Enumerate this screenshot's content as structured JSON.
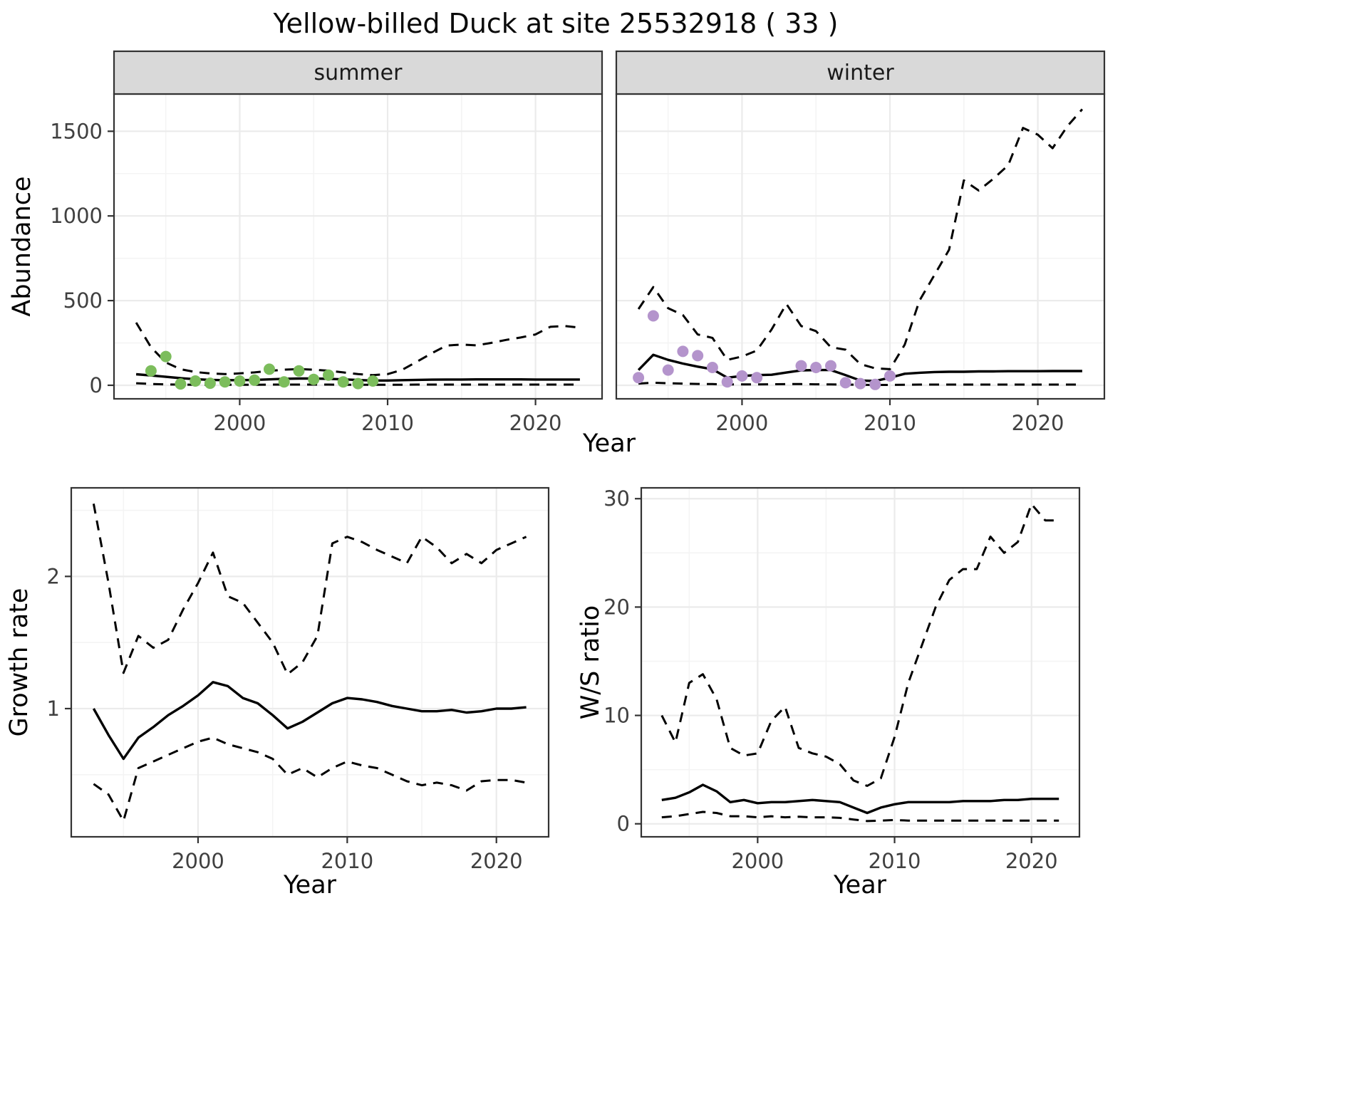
{
  "title": "Yellow-billed Duck at site 25532918 ( 33 )",
  "palette": {
    "summer_point": "#7CBD5C",
    "winter_point": "#B494CC",
    "line": "#000000",
    "strip_bg": "#D9D9D9",
    "strip_text": "#1A1A1A",
    "grid_major": "#EBEBEB",
    "grid_minor": "#F4F4F4",
    "panel_border": "#333333",
    "tick_text": "#404040",
    "axis_text": "#000000"
  },
  "chart_data": [
    {
      "id": "abundance",
      "type": "line",
      "xlabel": "Year",
      "ylabel": "Abundance",
      "xticks": [
        2000,
        2010,
        2020
      ],
      "yticks": [
        0,
        500,
        1000,
        1500
      ],
      "xlim": [
        1991.5,
        2024.5
      ],
      "ylim": [
        -80,
        1720
      ],
      "grid": true,
      "legend": "none",
      "x": [
        1993,
        1994,
        1995,
        1996,
        1997,
        1998,
        1999,
        2000,
        2001,
        2002,
        2003,
        2004,
        2005,
        2006,
        2007,
        2008,
        2009,
        2010,
        2011,
        2012,
        2013,
        2014,
        2015,
        2016,
        2017,
        2018,
        2019,
        2020,
        2021,
        2022,
        2023
      ],
      "facets": [
        {
          "label": "summer",
          "point_color_key": "summer_point",
          "observations": {
            "x": [
              1994,
              1995,
              1996,
              1997,
              1998,
              1999,
              2000,
              2001,
              2002,
              2003,
              2004,
              2005,
              2006,
              2007,
              2008,
              2009
            ],
            "y": [
              85,
              170,
              8,
              25,
              12,
              20,
              25,
              30,
              95,
              20,
              85,
              35,
              60,
              20,
              10,
              25
            ]
          },
          "series": [
            {
              "name": "fit",
              "style": "solid",
              "y": [
                65,
                58,
                50,
                42,
                36,
                32,
                30,
                30,
                32,
                35,
                38,
                40,
                40,
                38,
                35,
                31,
                28,
                28,
                30,
                32,
                33,
                34,
                34,
                35,
                35,
                35,
                35,
                34,
                34,
                34,
                34
              ]
            },
            {
              "name": "upper_ci",
              "style": "dashed",
              "y": [
                370,
                225,
                135,
                95,
                78,
                70,
                66,
                70,
                76,
                85,
                92,
                96,
                92,
                86,
                76,
                66,
                60,
                66,
                92,
                140,
                190,
                235,
                240,
                236,
                250,
                268,
                282,
                300,
                345,
                350,
                340
              ]
            },
            {
              "name": "lower_ci",
              "style": "dashed",
              "y": [
                12,
                8,
                5,
                4,
                3,
                3,
                3,
                3,
                3,
                4,
                4,
                4,
                4,
                4,
                3,
                3,
                3,
                3,
                3,
                4,
                4,
                4,
                4,
                4,
                4,
                4,
                4,
                4,
                4,
                4,
                4
              ]
            }
          ]
        },
        {
          "label": "winter",
          "point_color_key": "winter_point",
          "observations": {
            "x": [
              1993,
              1994,
              1995,
              1996,
              1997,
              1998,
              1999,
              2000,
              2001,
              2004,
              2005,
              2006,
              2007,
              2008,
              2009,
              2010
            ],
            "y": [
              45,
              410,
              90,
              200,
              175,
              105,
              20,
              55,
              45,
              115,
              105,
              115,
              15,
              10,
              5,
              55
            ]
          },
          "series": [
            {
              "name": "fit",
              "style": "solid",
              "y": [
                90,
                180,
                150,
                128,
                110,
                95,
                45,
                55,
                60,
                62,
                75,
                88,
                90,
                90,
                60,
                28,
                25,
                45,
                68,
                74,
                78,
                80,
                80,
                82,
                82,
                83,
                83,
                83,
                84,
                84,
                84
              ]
            },
            {
              "name": "upper_ci",
              "style": "dashed",
              "y": [
                450,
                580,
                455,
                415,
                300,
                280,
                150,
                170,
                205,
                330,
                480,
                350,
                320,
                225,
                210,
                125,
                100,
                95,
                240,
                500,
                650,
                800,
                1210,
                1150,
                1220,
                1300,
                1520,
                1480,
                1400,
                1530,
                1630
              ]
            },
            {
              "name": "lower_ci",
              "style": "dashed",
              "y": [
                10,
                15,
                12,
                10,
                8,
                7,
                5,
                5,
                5,
                6,
                7,
                7,
                6,
                5,
                4,
                3,
                2,
                2,
                3,
                4,
                4,
                4,
                4,
                4,
                4,
                4,
                4,
                4,
                4,
                4,
                4
              ]
            }
          ]
        }
      ]
    },
    {
      "id": "growth_rate",
      "type": "line",
      "xlabel": "Year",
      "ylabel": "Growth rate",
      "xticks": [
        2000,
        2010,
        2020
      ],
      "yticks": [
        1,
        2
      ],
      "xlim": [
        1991.5,
        2023.5
      ],
      "ylim": [
        0.03,
        2.67
      ],
      "grid": true,
      "legend": "none",
      "x": [
        1993,
        1994,
        1995,
        1996,
        1997,
        1998,
        1999,
        2000,
        2001,
        2002,
        2003,
        2004,
        2005,
        2006,
        2007,
        2008,
        2009,
        2010,
        2011,
        2012,
        2013,
        2014,
        2015,
        2016,
        2017,
        2018,
        2019,
        2020,
        2021,
        2022
      ],
      "series": [
        {
          "name": "median",
          "style": "solid",
          "y": [
            1.0,
            0.8,
            0.62,
            0.78,
            0.86,
            0.95,
            1.02,
            1.1,
            1.2,
            1.17,
            1.08,
            1.04,
            0.95,
            0.85,
            0.9,
            0.97,
            1.04,
            1.08,
            1.07,
            1.05,
            1.02,
            1.0,
            0.98,
            0.98,
            0.99,
            0.97,
            0.98,
            1.0,
            1.0,
            1.01
          ]
        },
        {
          "name": "upper_ci",
          "style": "dashed",
          "y": [
            2.55,
            1.95,
            1.27,
            1.55,
            1.46,
            1.52,
            1.75,
            1.95,
            2.18,
            1.85,
            1.8,
            1.65,
            1.5,
            1.26,
            1.35,
            1.55,
            2.25,
            2.3,
            2.26,
            2.2,
            2.15,
            2.1,
            2.3,
            2.22,
            2.1,
            2.17,
            2.1,
            2.2,
            2.25,
            2.3
          ]
        },
        {
          "name": "lower_ci",
          "style": "dashed",
          "y": [
            0.43,
            0.35,
            0.15,
            0.55,
            0.6,
            0.65,
            0.7,
            0.75,
            0.78,
            0.73,
            0.7,
            0.67,
            0.62,
            0.5,
            0.55,
            0.48,
            0.55,
            0.6,
            0.57,
            0.55,
            0.5,
            0.45,
            0.42,
            0.44,
            0.42,
            0.38,
            0.45,
            0.46,
            0.46,
            0.44
          ]
        }
      ]
    },
    {
      "id": "ws_ratio",
      "type": "line",
      "xlabel": "Year",
      "ylabel": "W/S ratio",
      "xticks": [
        2000,
        2010,
        2020
      ],
      "yticks": [
        0,
        10,
        20,
        30
      ],
      "xlim": [
        1991.5,
        2023.5
      ],
      "ylim": [
        -1.2,
        31
      ],
      "grid": true,
      "legend": "none",
      "x": [
        1993,
        1994,
        1995,
        1996,
        1997,
        1998,
        1999,
        2000,
        2001,
        2002,
        2003,
        2004,
        2005,
        2006,
        2007,
        2008,
        2009,
        2010,
        2011,
        2012,
        2013,
        2014,
        2015,
        2016,
        2017,
        2018,
        2019,
        2020,
        2021,
        2022
      ],
      "series": [
        {
          "name": "median",
          "style": "solid",
          "y": [
            2.2,
            2.4,
            2.9,
            3.6,
            3.0,
            2.0,
            2.2,
            1.9,
            2.0,
            2.0,
            2.1,
            2.2,
            2.1,
            2.0,
            1.5,
            1.0,
            1.5,
            1.8,
            2.0,
            2.0,
            2.0,
            2.0,
            2.1,
            2.1,
            2.1,
            2.2,
            2.2,
            2.3,
            2.3,
            2.3
          ]
        },
        {
          "name": "upper_ci",
          "style": "dashed",
          "y": [
            10.0,
            7.5,
            13.0,
            13.8,
            11.5,
            7.0,
            6.3,
            6.5,
            9.5,
            10.8,
            7.0,
            6.5,
            6.2,
            5.5,
            4.0,
            3.5,
            4.2,
            8.0,
            13.0,
            16.5,
            20.0,
            22.5,
            23.5,
            23.5,
            26.5,
            25.0,
            26.0,
            29.5,
            28.0,
            28.0
          ]
        },
        {
          "name": "lower_ci",
          "style": "dashed",
          "y": [
            0.6,
            0.7,
            0.9,
            1.1,
            1.0,
            0.7,
            0.7,
            0.6,
            0.7,
            0.6,
            0.65,
            0.6,
            0.6,
            0.55,
            0.4,
            0.25,
            0.3,
            0.35,
            0.3,
            0.3,
            0.3,
            0.3,
            0.3,
            0.3,
            0.3,
            0.3,
            0.3,
            0.3,
            0.3,
            0.3
          ]
        }
      ]
    }
  ]
}
